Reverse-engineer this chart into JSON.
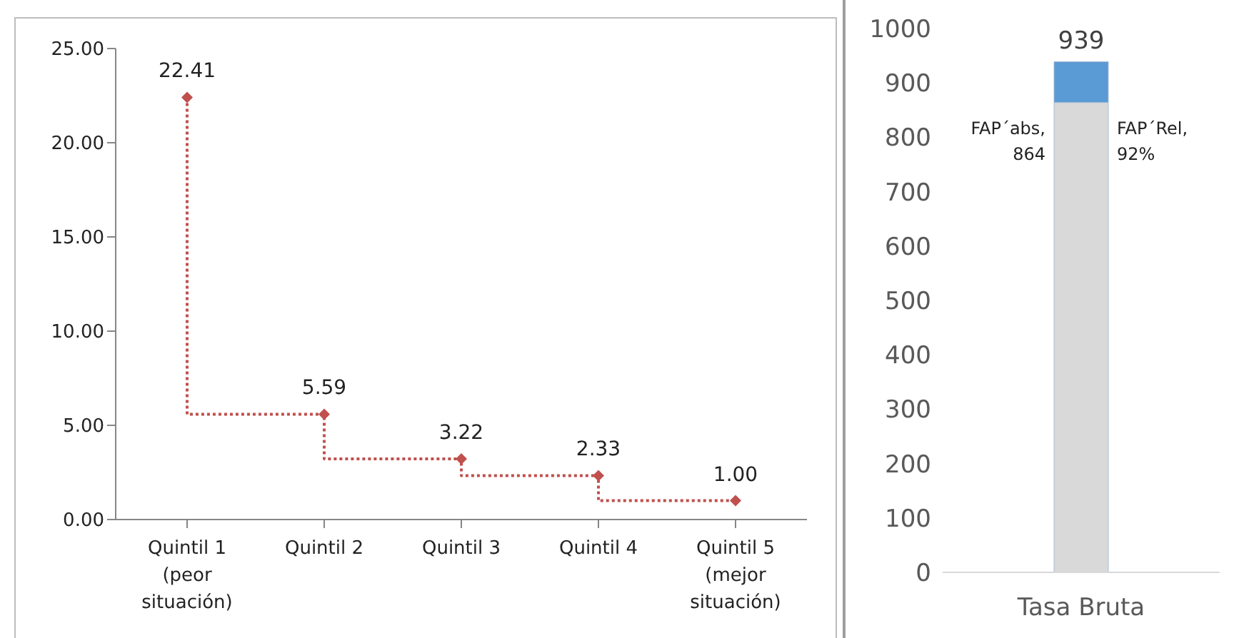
{
  "chart_data": [
    {
      "type": "step",
      "categories": [
        "Quintil 1 (peor situación)",
        "Quintil 2",
        "Quintil 3",
        "Quintil 4",
        "Quintil 5 (mejor situación)"
      ],
      "values": [
        22.41,
        5.59,
        3.22,
        2.33,
        1.0
      ],
      "value_labels": [
        "22.41",
        "5.59",
        "3.22",
        "2.33",
        "1.00"
      ],
      "color": "#c0504d",
      "marker": "diamond",
      "line_style": "dotted",
      "ylim": [
        0,
        25
      ],
      "yticks": [
        {
          "value": 0,
          "label": "0.00"
        },
        {
          "value": 5,
          "label": "5.00"
        },
        {
          "value": 10,
          "label": "10.00"
        },
        {
          "value": 15,
          "label": "15.00"
        },
        {
          "value": 20,
          "label": "20.00"
        },
        {
          "value": 25,
          "label": "25.00"
        }
      ],
      "grid": false,
      "legend": false
    },
    {
      "type": "bar",
      "stacked": true,
      "categories": [
        "Tasa Bruta"
      ],
      "series": [
        {
          "color": "#d9d9d9",
          "values": [
            864
          ]
        },
        {
          "color": "#5b9bd5",
          "values": [
            75
          ]
        }
      ],
      "totals": [
        "939"
      ],
      "annotations": [
        "FAP´abs, 864",
        "FAP´Rel, 92%"
      ],
      "ylim": [
        0,
        1000
      ],
      "yticks": [
        0,
        100,
        200,
        300,
        400,
        500,
        600,
        700,
        800,
        900,
        1000
      ],
      "grid": false,
      "legend": false
    }
  ]
}
